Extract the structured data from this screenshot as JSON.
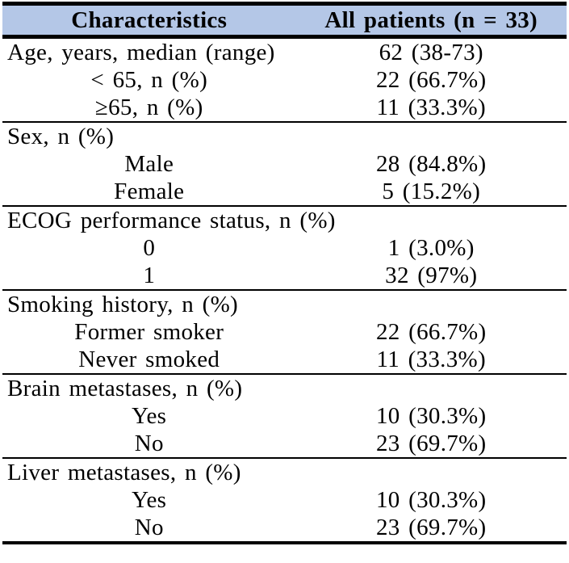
{
  "table": {
    "title_row": {
      "characteristics": "Characteristics",
      "all_patients": "All patients (n = 33)"
    },
    "colors": {
      "header_bg": "#b4c7e7",
      "border": "#000000",
      "text": "#000000",
      "page_bg": "#ffffff"
    },
    "sections": [
      {
        "rows": [
          {
            "label": "Age, years, median (range)",
            "value": "62 (38-73)",
            "indent": false
          },
          {
            "label": "< 65, n (%)",
            "value": "22 (66.7%)",
            "indent": true
          },
          {
            "label": "≥65, n (%)",
            "value": "11 (33.3%)",
            "indent": true
          }
        ]
      },
      {
        "rows": [
          {
            "label": "Sex, n (%)",
            "value": "",
            "indent": false
          },
          {
            "label": "Male",
            "value": "28 (84.8%)",
            "indent": true
          },
          {
            "label": "Female",
            "value": "5 (15.2%)",
            "indent": true
          }
        ]
      },
      {
        "rows": [
          {
            "label": "ECOG performance status, n (%)",
            "value": "",
            "indent": false
          },
          {
            "label": "0",
            "value": "1 (3.0%)",
            "indent": true
          },
          {
            "label": "1",
            "value": "32 (97%)",
            "indent": true
          }
        ]
      },
      {
        "rows": [
          {
            "label": "Smoking history, n (%)",
            "value": "",
            "indent": false
          },
          {
            "label": "Former smoker",
            "value": "22 (66.7%)",
            "indent": true
          },
          {
            "label": "Never smoked",
            "value": "11 (33.3%)",
            "indent": true
          }
        ]
      },
      {
        "rows": [
          {
            "label": "Brain metastases, n (%)",
            "value": "",
            "indent": false
          },
          {
            "label": "Yes",
            "value": "10 (30.3%)",
            "indent": true
          },
          {
            "label": "No",
            "value": "23 (69.7%)",
            "indent": true
          }
        ]
      },
      {
        "rows": [
          {
            "label": "Liver metastases, n (%)",
            "value": "",
            "indent": false
          },
          {
            "label": "Yes",
            "value": "10 (30.3%)",
            "indent": true
          },
          {
            "label": "No",
            "value": "23 (69.7%)",
            "indent": true
          }
        ]
      }
    ]
  }
}
